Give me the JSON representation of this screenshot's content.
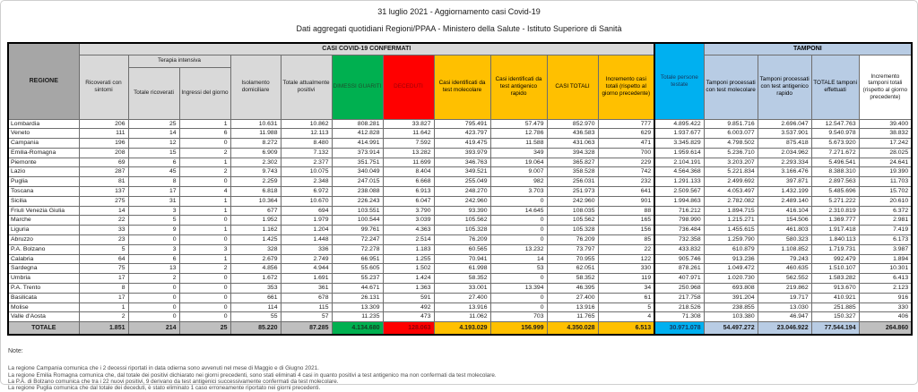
{
  "title": "31 luglio 2021 - Aggiornamento casi Covid-19",
  "subtitle": "Dati aggregati quotidiani Regioni/PPAA - Ministero della Salute - Istituto Superiore di Sanità",
  "colors": {
    "green": "#00b050",
    "red": "#ff0000",
    "yellow": "#ffc000",
    "cyan": "#00b0f0",
    "light_blue": "#b8cce4",
    "band_gray": "#d9d9d9",
    "regione_gray": "#a6a6a6",
    "total_gray": "#bfbfbf"
  },
  "table": {
    "group_headers": {
      "regione": "REGIONE",
      "casi_confermati": "CASI COVID-19 CONFERMATI",
      "terapia_intensiva": "Terapia intensiva",
      "totale_persone_testate": "Totale persone testate",
      "tamponi": "TAMPONI"
    },
    "columns": [
      "Ricoverati con sintomi",
      "Totale ricoverati",
      "Ingressi del giorno",
      "Isolamento domiciliare",
      "Totale attualmente positivi",
      "DIMESSI GUARITI",
      "DECEDUTI",
      "Casi identificati da test molecolare",
      "Casi identificati da test antigenico rapido",
      "CASI TOTALI",
      "Incremento casi totali (rispetto al giorno precedente)",
      "Totale persone testate",
      "Tamponi processati con test molecolare",
      "Tamponi processati con test antigenico rapido",
      "TOTALE tamponi effettuati",
      "Incremento tamponi totali (rispetto al giorno precedente)"
    ],
    "rows": [
      {
        "name": "Lombardia",
        "values": [
          "206",
          "25",
          "1",
          "10.631",
          "10.862",
          "808.281",
          "33.827",
          "795.491",
          "57.479",
          "852.970",
          "777",
          "4.895.422",
          "9.851.716",
          "2.696.047",
          "12.547.763",
          "39.400"
        ]
      },
      {
        "name": "Veneto",
        "values": [
          "111",
          "14",
          "6",
          "11.988",
          "12.113",
          "412.828",
          "11.642",
          "423.797",
          "12.786",
          "436.583",
          "629",
          "1.937.677",
          "6.003.077",
          "3.537.901",
          "9.540.978",
          "38.832"
        ]
      },
      {
        "name": "Campania",
        "values": [
          "196",
          "12",
          "0",
          "8.272",
          "8.480",
          "414.991",
          "7.592",
          "419.475",
          "11.588",
          "431.063",
          "471",
          "3.345.829",
          "4.798.502",
          "875.418",
          "5.673.920",
          "17.242"
        ]
      },
      {
        "name": "Emilia-Romagna",
        "values": [
          "208",
          "15",
          "2",
          "6.909",
          "7.132",
          "373.914",
          "13.282",
          "393.979",
          "349",
          "394.328",
          "700",
          "1.959.614",
          "5.236.710",
          "2.034.962",
          "7.271.672",
          "28.025"
        ]
      },
      {
        "name": "Piemonte",
        "values": [
          "69",
          "6",
          "1",
          "2.302",
          "2.377",
          "351.751",
          "11.699",
          "346.763",
          "19.064",
          "365.827",
          "229",
          "2.104.191",
          "3.203.207",
          "2.293.334",
          "5.496.541",
          "24.641"
        ]
      },
      {
        "name": "Lazio",
        "values": [
          "287",
          "45",
          "2",
          "9.743",
          "10.075",
          "340.049",
          "8.404",
          "349.521",
          "9.007",
          "358.528",
          "742",
          "4.564.368",
          "5.221.834",
          "3.166.476",
          "8.388.310",
          "19.390"
        ]
      },
      {
        "name": "Puglia",
        "values": [
          "81",
          "8",
          "0",
          "2.259",
          "2.348",
          "247.015",
          "6.668",
          "255.049",
          "982",
          "256.031",
          "232",
          "1.291.133",
          "2.499.692",
          "397.871",
          "2.897.563",
          "11.703"
        ]
      },
      {
        "name": "Toscana",
        "values": [
          "137",
          "17",
          "4",
          "6.818",
          "6.972",
          "238.088",
          "6.913",
          "248.270",
          "3.703",
          "251.973",
          "641",
          "2.509.567",
          "4.053.497",
          "1.432.199",
          "5.485.696",
          "15.702"
        ]
      },
      {
        "name": "Sicilia",
        "values": [
          "275",
          "31",
          "1",
          "10.364",
          "10.670",
          "226.243",
          "6.047",
          "242.960",
          "0",
          "242.960",
          "901",
          "1.994.863",
          "2.782.082",
          "2.489.140",
          "5.271.222",
          "20.610"
        ]
      },
      {
        "name": "Friuli Venezia Giulia",
        "values": [
          "14",
          "3",
          "1",
          "677",
          "694",
          "103.551",
          "3.790",
          "93.390",
          "14.645",
          "108.035",
          "88",
          "716.212",
          "1.894.715",
          "416.104",
          "2.310.819",
          "6.372"
        ]
      },
      {
        "name": "Marche",
        "values": [
          "22",
          "5",
          "0",
          "1.952",
          "1.979",
          "100.544",
          "3.039",
          "105.562",
          "0",
          "105.562",
          "165",
          "798.990",
          "1.215.271",
          "154.506",
          "1.369.777",
          "2.981"
        ]
      },
      {
        "name": "Liguria",
        "values": [
          "33",
          "9",
          "1",
          "1.162",
          "1.204",
          "99.761",
          "4.363",
          "105.328",
          "0",
          "105.328",
          "156",
          "736.484",
          "1.455.615",
          "461.803",
          "1.917.418",
          "7.419"
        ]
      },
      {
        "name": "Abruzzo",
        "values": [
          "23",
          "0",
          "0",
          "1.425",
          "1.448",
          "72.247",
          "2.514",
          "76.209",
          "0",
          "76.209",
          "85",
          "732.358",
          "1.259.790",
          "580.323",
          "1.840.113",
          "6.173"
        ]
      },
      {
        "name": "P.A. Bolzano",
        "values": [
          "5",
          "3",
          "3",
          "328",
          "336",
          "72.278",
          "1.183",
          "60.565",
          "13.232",
          "73.797",
          "22",
          "433.832",
          "610.879",
          "1.108.852",
          "1.719.731",
          "3.987"
        ]
      },
      {
        "name": "Calabria",
        "values": [
          "64",
          "6",
          "1",
          "2.679",
          "2.749",
          "66.951",
          "1.255",
          "70.941",
          "14",
          "70.955",
          "122",
          "905.746",
          "913.236",
          "79.243",
          "992.479",
          "1.894"
        ]
      },
      {
        "name": "Sardegna",
        "values": [
          "75",
          "13",
          "2",
          "4.856",
          "4.944",
          "55.605",
          "1.502",
          "61.998",
          "53",
          "62.051",
          "330",
          "878.261",
          "1.049.472",
          "460.635",
          "1.510.107",
          "10.301"
        ]
      },
      {
        "name": "Umbria",
        "values": [
          "17",
          "2",
          "0",
          "1.672",
          "1.691",
          "55.237",
          "1.424",
          "58.352",
          "0",
          "58.352",
          "119",
          "407.971",
          "1.020.730",
          "562.552",
          "1.583.282",
          "6.413"
        ]
      },
      {
        "name": "P.A. Trento",
        "values": [
          "8",
          "0",
          "0",
          "353",
          "361",
          "44.671",
          "1.363",
          "33.001",
          "13.394",
          "46.395",
          "34",
          "250.968",
          "693.808",
          "219.862",
          "913.670",
          "2.123"
        ]
      },
      {
        "name": "Basilicata",
        "values": [
          "17",
          "0",
          "0",
          "661",
          "678",
          "26.131",
          "591",
          "27.400",
          "0",
          "27.400",
          "61",
          "217.758",
          "391.204",
          "19.717",
          "410.921",
          "916"
        ]
      },
      {
        "name": "Molise",
        "values": [
          "1",
          "0",
          "0",
          "114",
          "115",
          "13.309",
          "492",
          "13.916",
          "0",
          "13.916",
          "5",
          "218.526",
          "238.855",
          "13.030",
          "251.885",
          "330"
        ]
      },
      {
        "name": "Valle d'Aosta",
        "values": [
          "2",
          "0",
          "0",
          "55",
          "57",
          "11.235",
          "473",
          "11.062",
          "703",
          "11.765",
          "4",
          "71.308",
          "103.380",
          "46.947",
          "150.327",
          "406"
        ]
      }
    ],
    "total": {
      "name": "TOTALE",
      "values": [
        "1.851",
        "214",
        "25",
        "85.220",
        "87.285",
        "4.134.680",
        "128.063",
        "4.193.029",
        "156.999",
        "4.350.028",
        "6.513",
        "30.971.078",
        "54.497.272",
        "23.046.922",
        "77.544.194",
        "264.860"
      ]
    }
  },
  "notes": {
    "label": "Note:",
    "items": [
      "La regione Campania comunica che i 2 decessi riportati in data odierna sono avvenuti nel mese di Maggio e di Giugno 2021.",
      "La regione Emilia Romagna comunica che, dal totale dei positivi dichiarato nei giorni precedenti, sono stati eliminati 4 casi in quanto positivi a test antigenico ma non confermati da test molecolare.",
      "La P.A. di Bolzano comunica che tra i 22 nuovi positivi, 9 derivano da test antigenici successivamente confermati da test molecolare.",
      "La regione Puglia comunica che dal totale dei deceduti, è stato eliminato 1 caso erroneamente riportato nei giorni precedenti."
    ]
  }
}
